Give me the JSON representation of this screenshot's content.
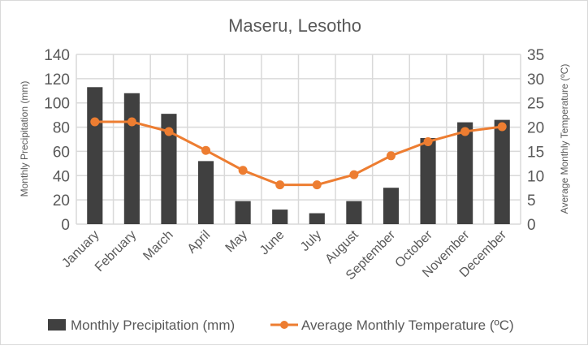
{
  "chart_data": {
    "type": "bar+line",
    "title": "Maseru, Lesotho",
    "categories": [
      "January",
      "February",
      "March",
      "April",
      "May",
      "June",
      "July",
      "August",
      "September",
      "October",
      "November",
      "December"
    ],
    "series": [
      {
        "name": "Monthly Precipitation  (mm)",
        "type": "bar",
        "axis": "left",
        "color": "#404040",
        "values": [
          113,
          108,
          91,
          52,
          19,
          12,
          9,
          19,
          30,
          71,
          84,
          86
        ]
      },
      {
        "name": "Average Monthly  Temperature (ºC)",
        "type": "line",
        "axis": "right",
        "color": "#ED7D31",
        "values": [
          21.1,
          21.1,
          19.1,
          15.2,
          11.1,
          8.1,
          8.1,
          10.2,
          14.1,
          17.0,
          19.1,
          20.1
        ]
      }
    ],
    "ylabel": "Monthly Precipitation  (mm)",
    "y2label": "Average Monthly Temperature (ºC)",
    "ylim": [
      0,
      140
    ],
    "y2lim": [
      0,
      35
    ],
    "yticks": [
      0,
      20,
      40,
      60,
      80,
      100,
      120,
      140
    ],
    "y2ticks": [
      0,
      5,
      10,
      15,
      20,
      25,
      30,
      35
    ],
    "grid": true,
    "legend": "bottom"
  }
}
